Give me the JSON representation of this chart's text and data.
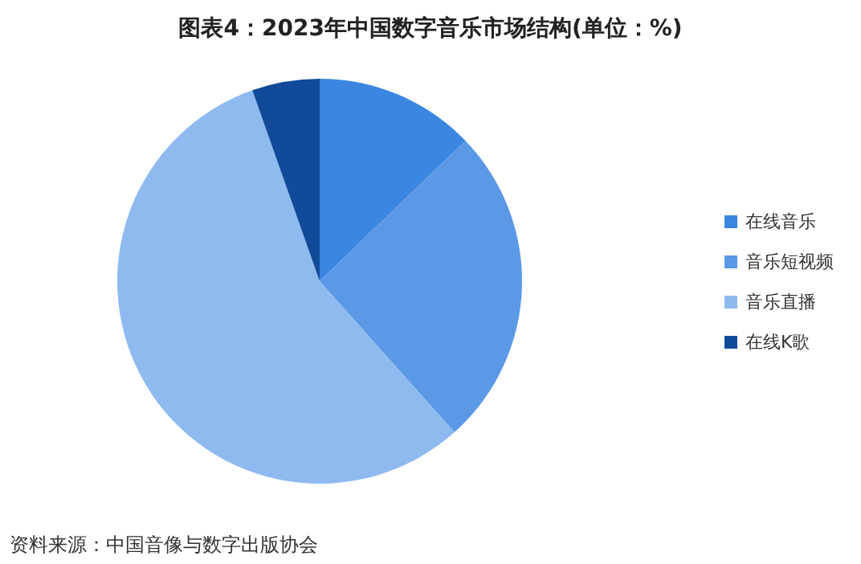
{
  "chart_data": {
    "type": "pie",
    "title": "图表4：2023年中国数字音乐市场结构(单位：%)",
    "categories": [
      "在线音乐",
      "音乐短视频",
      "音乐直播",
      "在线K歌"
    ],
    "values": [
      12.8,
      25.6,
      56.2,
      5.4
    ],
    "colors": [
      "#3a86e0",
      "#5b98e6",
      "#8fbaf0",
      "#124a9a"
    ],
    "legend": "right",
    "annotations": [
      "资料来源：中国音像与数字出版协会"
    ]
  }
}
